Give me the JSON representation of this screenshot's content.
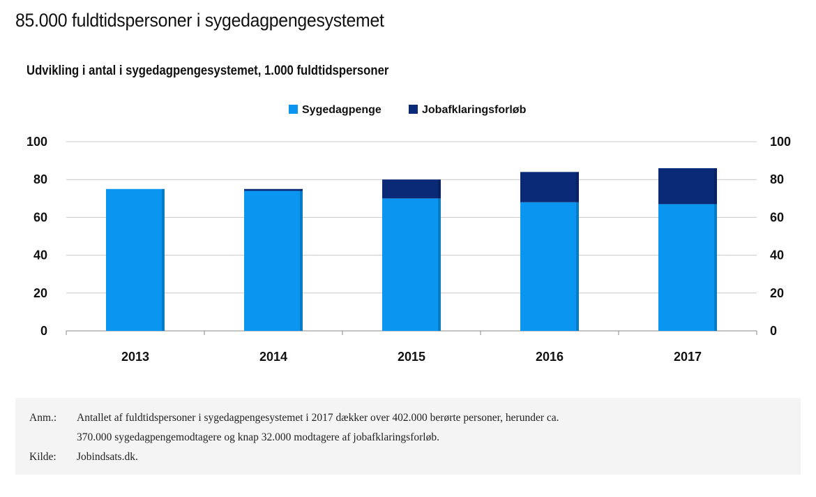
{
  "headline": "85.000 fuldtidspersoner i sygedagpengesystemet",
  "chart_data": {
    "type": "bar",
    "stacked": true,
    "title": "Udvikling i antal i sygedagpengesystemet,  1.000 fuldtidspersoner",
    "categories": [
      "2013",
      "2014",
      "2015",
      "2016",
      "2017"
    ],
    "series": [
      {
        "name": "Sygedagpenge",
        "values": [
          75,
          74,
          70,
          68,
          67
        ],
        "color": "#0a96f0"
      },
      {
        "name": "Jobafklaringsforløb",
        "values": [
          0,
          1,
          10,
          16,
          19
        ],
        "color": "#0a2a78"
      }
    ],
    "ylim": [
      0,
      100
    ],
    "yticks": [
      "0",
      "20",
      "40",
      "60",
      "80",
      "100"
    ],
    "y_axis_both_sides": true,
    "grid": true,
    "legend": "top-center"
  },
  "note": {
    "anm_label": "Anm.:",
    "anm_line1": "Antallet af fuldtidspersoner i sygedagpengesystemet i 2017 dækker over 402.000 berørte personer, herunder ca.",
    "anm_line2": "370.000 sygedagpengemodtagere og knap 32.000 modtagere af jobafklaringsforløb.",
    "kilde_label": "Kilde:",
    "kilde_text": "Jobindsats.dk."
  }
}
